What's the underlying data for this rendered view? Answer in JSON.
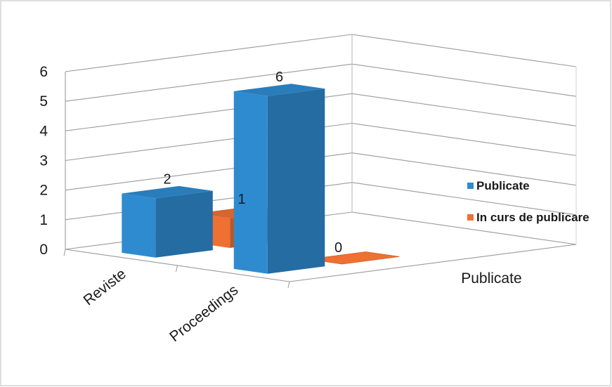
{
  "chart_data": {
    "type": "bar",
    "categories": [
      "Reviste",
      "Proceedings"
    ],
    "series": [
      {
        "name": "Publicate",
        "values": [
          2,
          6
        ],
        "color": "#2e8bd0"
      },
      {
        "name": "In curs de publicare",
        "values": [
          1,
          0
        ],
        "color": "#ee7033"
      }
    ],
    "depth_label": "Publicate",
    "yticks": [
      "0",
      "1",
      "2",
      "3",
      "4",
      "5",
      "6"
    ],
    "ylim": [
      0,
      6
    ],
    "grid": true,
    "legend": "right",
    "three_d": true
  }
}
